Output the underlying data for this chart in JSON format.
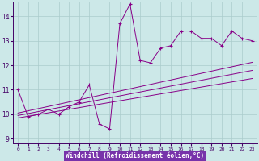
{
  "xlabel": "Windchill (Refroidissement éolien,°C)",
  "bg_color": "#cce8e8",
  "grid_color": "#aacccc",
  "line_color": "#880088",
  "xlim": [
    -0.5,
    23.5
  ],
  "ylim": [
    8.8,
    14.6
  ],
  "yticks": [
    9,
    10,
    11,
    12,
    13,
    14
  ],
  "xticks": [
    0,
    1,
    2,
    3,
    4,
    5,
    6,
    7,
    8,
    9,
    10,
    11,
    12,
    13,
    14,
    15,
    16,
    17,
    18,
    19,
    20,
    21,
    22,
    23
  ],
  "x_data": [
    0,
    1,
    2,
    3,
    4,
    5,
    6,
    7,
    8,
    9,
    10,
    11,
    12,
    13,
    14,
    15,
    16,
    17,
    18,
    19,
    20,
    21,
    22,
    23
  ],
  "y_main": [
    11.0,
    9.9,
    10.0,
    10.2,
    10.0,
    10.3,
    10.5,
    11.2,
    9.6,
    9.4,
    13.7,
    14.5,
    12.2,
    12.1,
    12.7,
    12.8,
    13.4,
    13.4,
    13.1,
    13.1,
    12.8,
    13.4,
    13.1,
    13.0
  ],
  "y_linear1": [
    9.85,
    9.92,
    9.99,
    10.06,
    10.13,
    10.2,
    10.27,
    10.34,
    10.41,
    10.48,
    10.55,
    10.62,
    10.69,
    10.76,
    10.83,
    10.9,
    10.97,
    11.04,
    11.11,
    11.18,
    11.25,
    11.32,
    11.39,
    11.46
  ],
  "y_linear2": [
    9.95,
    10.03,
    10.11,
    10.19,
    10.27,
    10.35,
    10.43,
    10.51,
    10.59,
    10.67,
    10.75,
    10.83,
    10.91,
    10.99,
    11.07,
    11.15,
    11.23,
    11.31,
    11.39,
    11.47,
    11.55,
    11.63,
    11.71,
    11.79
  ],
  "y_linear3": [
    10.05,
    10.14,
    10.23,
    10.32,
    10.41,
    10.5,
    10.59,
    10.68,
    10.77,
    10.86,
    10.95,
    11.04,
    11.13,
    11.22,
    11.31,
    11.4,
    11.49,
    11.58,
    11.67,
    11.76,
    11.85,
    11.94,
    12.03,
    12.12
  ],
  "xlabel_bg": "#7733aa",
  "xlabel_fg": "white",
  "tick_color": "#440066",
  "spine_color": "#440066"
}
